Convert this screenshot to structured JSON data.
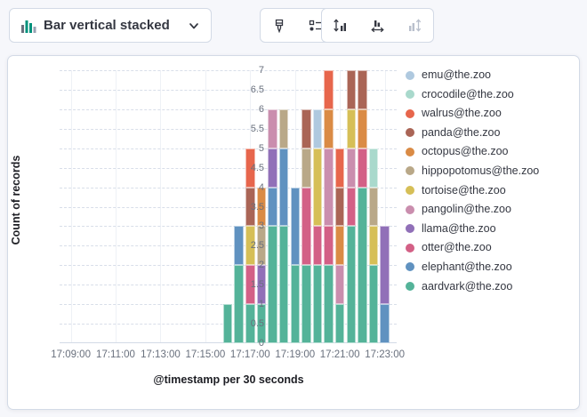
{
  "toolbar": {
    "chart_type_label": "Bar vertical stacked"
  },
  "chart": {
    "y_axis": {
      "title": "Count of records",
      "min": 0,
      "max": 7,
      "tick_step": 0.5
    },
    "x_axis": {
      "title": "@timestamp per 30 seconds",
      "tick_labels": [
        "17:09:00",
        "17:11:00",
        "17:13:00",
        "17:15:00",
        "17:17:00",
        "17:19:00",
        "17:21:00",
        "17:23:00"
      ]
    },
    "legend": {
      "items": [
        {
          "label": "emu@the.zoo",
          "color": "#AFC9DF"
        },
        {
          "label": "crocodile@the.zoo",
          "color": "#A9D9CC"
        },
        {
          "label": "walrus@the.zoo",
          "color": "#E7664C"
        },
        {
          "label": "panda@the.zoo",
          "color": "#AA6556"
        },
        {
          "label": "octopus@the.zoo",
          "color": "#DA8B45"
        },
        {
          "label": "hippopotomus@the.zoo",
          "color": "#B9A888"
        },
        {
          "label": "tortoise@the.zoo",
          "color": "#D6BF57"
        },
        {
          "label": "pangolin@the.zoo",
          "color": "#CA8EAE"
        },
        {
          "label": "llama@the.zoo",
          "color": "#9170B8"
        },
        {
          "label": "otter@the.zoo",
          "color": "#D36086"
        },
        {
          "label": "elephant@the.zoo",
          "color": "#6092C0"
        },
        {
          "label": "aardvark@the.zoo",
          "color": "#54B399"
        }
      ]
    }
  },
  "chart_data": {
    "type": "bar",
    "stacked": true,
    "title": "",
    "xlabel": "@timestamp per 30 seconds",
    "ylabel": "Count of records",
    "ylim": [
      0,
      7
    ],
    "grid": true,
    "legend_position": "right",
    "categories": [
      "17:16:00",
      "17:16:30",
      "17:17:00",
      "17:17:30",
      "17:18:00",
      "17:18:30",
      "17:19:00",
      "17:19:30",
      "17:20:00",
      "17:20:30",
      "17:21:00",
      "17:21:30",
      "17:22:00",
      "17:22:30",
      "17:23:00"
    ],
    "series": [
      {
        "name": "aardvark@the.zoo",
        "color": "#54B399",
        "values": [
          1,
          2,
          1,
          1,
          3,
          3,
          2,
          2,
          2,
          2,
          1,
          3,
          4,
          2,
          0
        ]
      },
      {
        "name": "elephant@the.zoo",
        "color": "#6092C0",
        "values": [
          0,
          1,
          0,
          0,
          1,
          2,
          2,
          0,
          0,
          0,
          0,
          0,
          0,
          0,
          1
        ]
      },
      {
        "name": "otter@the.zoo",
        "color": "#D36086",
        "values": [
          0,
          0,
          1,
          0,
          0,
          0,
          0,
          2,
          1,
          1,
          0,
          1,
          1,
          0,
          0
        ]
      },
      {
        "name": "llama@the.zoo",
        "color": "#9170B8",
        "values": [
          0,
          0,
          0,
          1,
          1,
          0,
          0,
          0,
          0,
          0,
          0,
          0,
          0,
          0,
          2
        ]
      },
      {
        "name": "pangolin@the.zoo",
        "color": "#CA8EAE",
        "values": [
          0,
          0,
          0,
          0,
          1,
          0,
          0,
          0,
          0,
          2,
          1,
          1,
          0,
          0,
          0
        ]
      },
      {
        "name": "tortoise@the.zoo",
        "color": "#D6BF57",
        "values": [
          0,
          0,
          1,
          0,
          0,
          0,
          0,
          0,
          2,
          0,
          0,
          1,
          0,
          1,
          0
        ]
      },
      {
        "name": "hippopotomus@the.zoo",
        "color": "#B9A888",
        "values": [
          0,
          0,
          0,
          1,
          0,
          1,
          0,
          1,
          0,
          0,
          0,
          0,
          0,
          1,
          0
        ]
      },
      {
        "name": "octopus@the.zoo",
        "color": "#DA8B45",
        "values": [
          0,
          0,
          0,
          1,
          0,
          0,
          0,
          0,
          0,
          1,
          1,
          0,
          1,
          0,
          0
        ]
      },
      {
        "name": "panda@the.zoo",
        "color": "#AA6556",
        "values": [
          0,
          0,
          1,
          0,
          0,
          0,
          0,
          1,
          0,
          0,
          1,
          1,
          1,
          0,
          0
        ]
      },
      {
        "name": "walrus@the.zoo",
        "color": "#E7664C",
        "values": [
          0,
          0,
          1,
          0,
          0,
          0,
          0,
          0,
          0,
          1,
          1,
          0,
          0,
          0,
          0
        ]
      },
      {
        "name": "crocodile@the.zoo",
        "color": "#A9D9CC",
        "values": [
          0,
          0,
          0,
          0,
          0,
          0,
          0,
          0,
          0,
          0,
          0,
          0,
          0,
          1,
          0
        ]
      },
      {
        "name": "emu@the.zoo",
        "color": "#AFC9DF",
        "values": [
          0,
          0,
          0,
          0,
          0,
          0,
          0,
          0,
          1,
          0,
          0,
          0,
          0,
          0,
          0
        ]
      }
    ]
  }
}
